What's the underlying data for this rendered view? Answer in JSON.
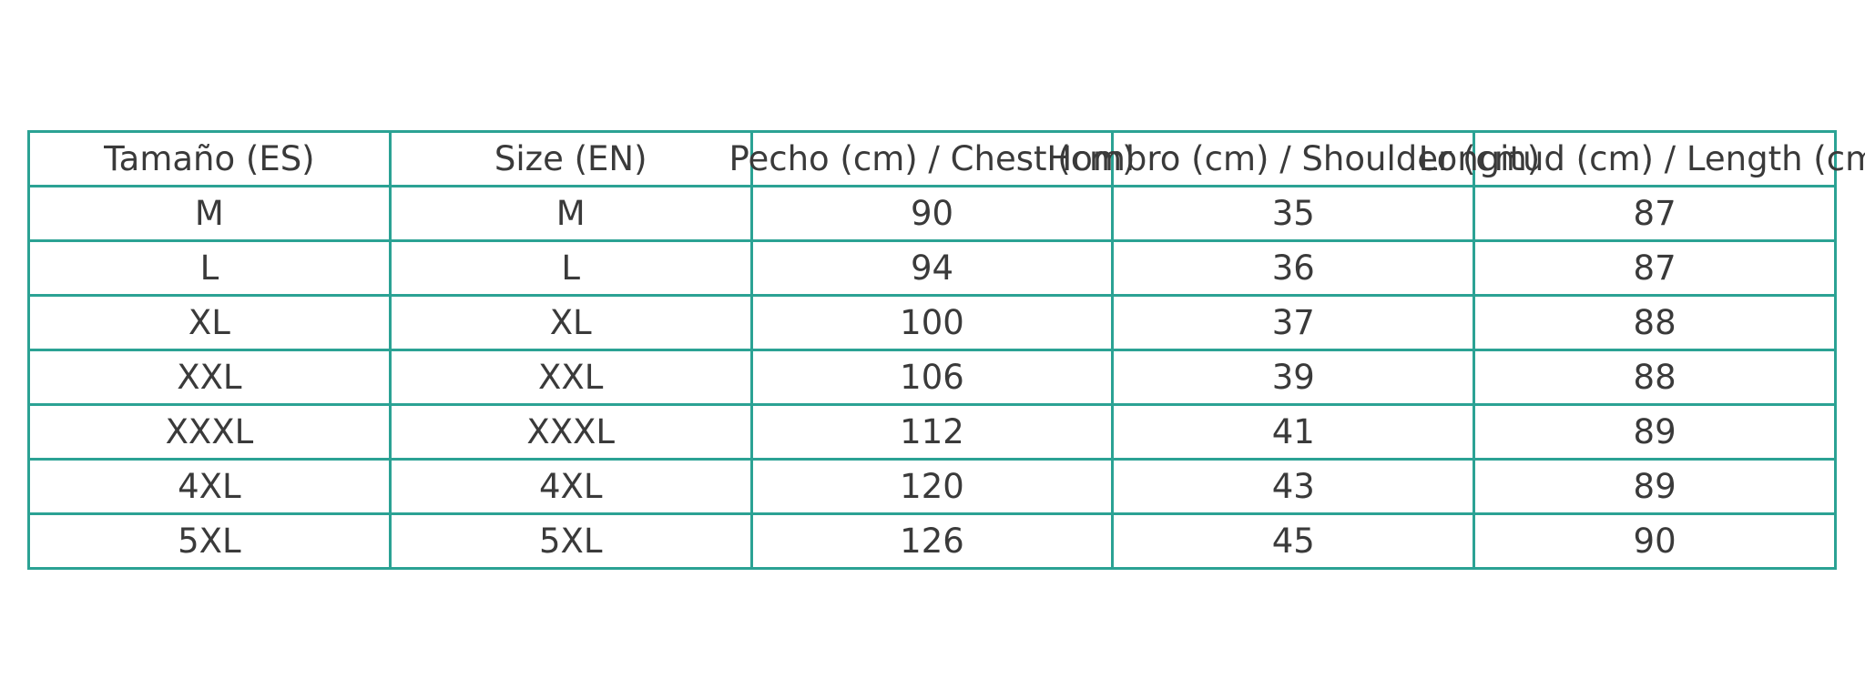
{
  "chart_data": {
    "type": "table",
    "columns": [
      "Tamaño (ES)",
      "Size (EN)",
      "Pecho (cm) / Chest (cm)",
      "Hombro (cm) / Shoulder (cm)",
      "Longitud (cm) / Length (cm)"
    ],
    "rows": [
      [
        "M",
        "M",
        "90",
        "35",
        "87"
      ],
      [
        "L",
        "L",
        "94",
        "36",
        "87"
      ],
      [
        "XL",
        "XL",
        "100",
        "37",
        "88"
      ],
      [
        "XXL",
        "XXL",
        "106",
        "39",
        "88"
      ],
      [
        "XXXL",
        "XXXL",
        "112",
        "41",
        "89"
      ],
      [
        "4XL",
        "4XL",
        "120",
        "43",
        "89"
      ],
      [
        "5XL",
        "5XL",
        "126",
        "45",
        "90"
      ]
    ],
    "layout": {
      "grid": "all-borders",
      "text_align": "center",
      "header_overflow": "labels wider than cells, overlapping neighbors, clipped at right image edge"
    }
  },
  "colors": {
    "border": "#2ba294",
    "text": "#3a3a3a",
    "background": "#ffffff"
  }
}
